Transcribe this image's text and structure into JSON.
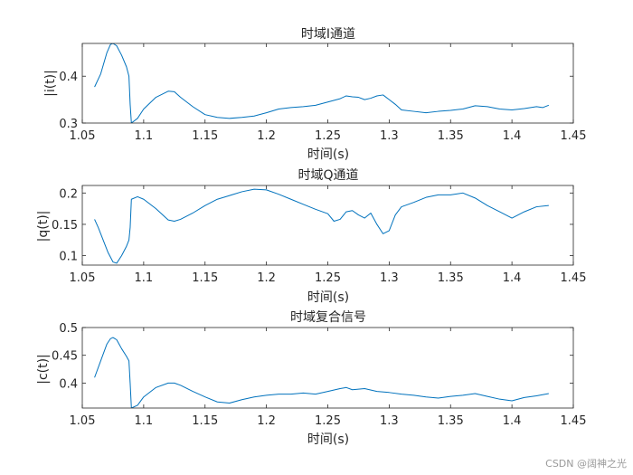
{
  "watermark": "CSDN @阔神之光",
  "colors": {
    "line": "#0072BD",
    "axes": "#262626",
    "background": "#ffffff"
  },
  "chart_data": [
    {
      "type": "line",
      "title": "时域I通道",
      "xlabel": "时间(s)",
      "ylabel": "|i(t)|",
      "xlim": [
        1.05,
        1.45
      ],
      "ylim": [
        0.3,
        0.47
      ],
      "xticks": [
        1.05,
        1.1,
        1.15,
        1.2,
        1.25,
        1.3,
        1.35,
        1.4,
        1.45
      ],
      "xtick_labels": [
        "1.05",
        "1.1",
        "1.15",
        "1.2",
        "1.25",
        "1.3",
        "1.35",
        "1.4",
        "1.45"
      ],
      "yticks": [
        0.3,
        0.4
      ],
      "ytick_labels": [
        "0.3",
        "0.4"
      ],
      "grid": false,
      "series": [
        {
          "x": [
            1.06,
            1.065,
            1.07,
            1.073,
            1.075,
            1.078,
            1.082,
            1.086,
            1.088,
            1.089,
            1.09,
            1.095,
            1.1,
            1.11,
            1.12,
            1.125,
            1.13,
            1.14,
            1.15,
            1.16,
            1.17,
            1.18,
            1.19,
            1.2,
            1.21,
            1.22,
            1.23,
            1.24,
            1.25,
            1.26,
            1.265,
            1.27,
            1.275,
            1.28,
            1.285,
            1.29,
            1.295,
            1.3,
            1.305,
            1.31,
            1.32,
            1.33,
            1.34,
            1.35,
            1.36,
            1.37,
            1.38,
            1.39,
            1.4,
            1.41,
            1.42,
            1.425,
            1.43
          ],
          "y": [
            0.377,
            0.405,
            0.45,
            0.468,
            0.47,
            0.465,
            0.445,
            0.42,
            0.4,
            0.34,
            0.3,
            0.31,
            0.33,
            0.355,
            0.368,
            0.367,
            0.355,
            0.335,
            0.318,
            0.312,
            0.31,
            0.312,
            0.315,
            0.322,
            0.33,
            0.333,
            0.335,
            0.338,
            0.345,
            0.352,
            0.358,
            0.356,
            0.355,
            0.35,
            0.353,
            0.358,
            0.36,
            0.35,
            0.34,
            0.328,
            0.325,
            0.322,
            0.325,
            0.327,
            0.33,
            0.337,
            0.335,
            0.33,
            0.328,
            0.331,
            0.335,
            0.333,
            0.338
          ]
        }
      ]
    },
    {
      "type": "line",
      "title": "时域Q通道",
      "xlabel": "时间(s)",
      "ylabel": "|q(t)|",
      "xlim": [
        1.05,
        1.45
      ],
      "ylim": [
        0.085,
        0.212
      ],
      "xticks": [
        1.05,
        1.1,
        1.15,
        1.2,
        1.25,
        1.3,
        1.35,
        1.4,
        1.45
      ],
      "xtick_labels": [
        "1.05",
        "1.1",
        "1.15",
        "1.2",
        "1.25",
        "1.3",
        "1.35",
        "1.4",
        "1.45"
      ],
      "yticks": [
        0.1,
        0.15,
        0.2
      ],
      "ytick_labels": [
        "0.1",
        "0.15",
        "0.2"
      ],
      "grid": false,
      "series": [
        {
          "x": [
            1.06,
            1.063,
            1.067,
            1.071,
            1.075,
            1.078,
            1.082,
            1.086,
            1.088,
            1.089,
            1.09,
            1.095,
            1.1,
            1.11,
            1.12,
            1.125,
            1.13,
            1.14,
            1.15,
            1.16,
            1.17,
            1.18,
            1.19,
            1.2,
            1.21,
            1.22,
            1.23,
            1.24,
            1.25,
            1.255,
            1.26,
            1.265,
            1.27,
            1.275,
            1.28,
            1.285,
            1.29,
            1.295,
            1.3,
            1.305,
            1.31,
            1.32,
            1.33,
            1.34,
            1.35,
            1.36,
            1.37,
            1.38,
            1.39,
            1.4,
            1.41,
            1.42,
            1.43
          ],
          "y": [
            0.158,
            0.145,
            0.125,
            0.105,
            0.09,
            0.088,
            0.1,
            0.115,
            0.125,
            0.145,
            0.19,
            0.194,
            0.19,
            0.175,
            0.157,
            0.155,
            0.158,
            0.168,
            0.18,
            0.19,
            0.196,
            0.202,
            0.206,
            0.205,
            0.198,
            0.19,
            0.182,
            0.174,
            0.167,
            0.155,
            0.158,
            0.17,
            0.172,
            0.165,
            0.16,
            0.168,
            0.15,
            0.135,
            0.14,
            0.165,
            0.178,
            0.185,
            0.193,
            0.197,
            0.197,
            0.2,
            0.192,
            0.18,
            0.17,
            0.16,
            0.17,
            0.178,
            0.18
          ]
        }
      ]
    },
    {
      "type": "line",
      "title": "时域复合信号",
      "xlabel": "时间(s)",
      "ylabel": "|c(t)|",
      "xlim": [
        1.05,
        1.45
      ],
      "ylim": [
        0.355,
        0.5
      ],
      "xticks": [
        1.05,
        1.1,
        1.15,
        1.2,
        1.25,
        1.3,
        1.35,
        1.4,
        1.45
      ],
      "xtick_labels": [
        "1.05",
        "1.1",
        "1.15",
        "1.2",
        "1.25",
        "1.3",
        "1.35",
        "1.4",
        "1.45"
      ],
      "yticks": [
        0.4,
        0.45,
        0.5
      ],
      "ytick_labels": [
        "0.4",
        "0.45",
        "0.5"
      ],
      "grid": false,
      "series": [
        {
          "x": [
            1.06,
            1.065,
            1.07,
            1.073,
            1.075,
            1.078,
            1.082,
            1.086,
            1.088,
            1.089,
            1.09,
            1.095,
            1.1,
            1.11,
            1.12,
            1.125,
            1.13,
            1.14,
            1.15,
            1.16,
            1.17,
            1.18,
            1.19,
            1.2,
            1.21,
            1.22,
            1.23,
            1.24,
            1.25,
            1.26,
            1.265,
            1.27,
            1.28,
            1.29,
            1.3,
            1.31,
            1.32,
            1.33,
            1.34,
            1.35,
            1.36,
            1.37,
            1.38,
            1.39,
            1.4,
            1.41,
            1.42,
            1.43
          ],
          "y": [
            0.41,
            0.44,
            0.47,
            0.48,
            0.482,
            0.478,
            0.462,
            0.448,
            0.44,
            0.4,
            0.355,
            0.36,
            0.375,
            0.392,
            0.4,
            0.4,
            0.396,
            0.385,
            0.375,
            0.366,
            0.364,
            0.37,
            0.375,
            0.378,
            0.38,
            0.38,
            0.382,
            0.38,
            0.385,
            0.39,
            0.392,
            0.388,
            0.39,
            0.385,
            0.383,
            0.38,
            0.378,
            0.375,
            0.373,
            0.376,
            0.378,
            0.381,
            0.376,
            0.371,
            0.368,
            0.374,
            0.377,
            0.381
          ]
        }
      ]
    }
  ]
}
